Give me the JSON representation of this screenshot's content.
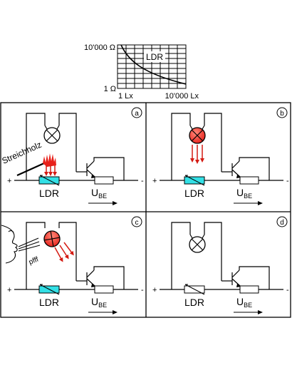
{
  "graph": {
    "y_top_label": "10'000 Ω",
    "y_bottom_label": "1 Ω",
    "x_left_label": "1 Lx",
    "x_right_label": "10'000 Lx",
    "curve_label": "LDR"
  },
  "panels": [
    {
      "id": "a",
      "corner_label": "a",
      "lamp_on": false,
      "ldr_label": "LDR",
      "vbe_main": "U",
      "vbe_sub": "BE",
      "plus": "+",
      "minus": "-",
      "light_source": "match",
      "match_label": "Streichholz"
    },
    {
      "id": "b",
      "corner_label": "b",
      "lamp_on": true,
      "ldr_label": "LDR",
      "vbe_main": "U",
      "vbe_sub": "BE",
      "plus": "+",
      "minus": "-",
      "light_source": "lamp"
    },
    {
      "id": "c",
      "corner_label": "c",
      "lamp_on": true,
      "ldr_label": "LDR",
      "vbe_main": "U",
      "vbe_sub": "BE",
      "plus": "+",
      "minus": "-",
      "light_source": "blow",
      "blow_label": "pfff"
    },
    {
      "id": "d",
      "corner_label": "d",
      "lamp_on": false,
      "ldr_label": "LDR",
      "vbe_main": "U",
      "vbe_sub": "BE",
      "plus": "+",
      "minus": "-",
      "light_source": "none"
    }
  ],
  "colors": {
    "ldr_fill": "#33e0e6",
    "lamp_on": "#e8201a",
    "arrow": "#d41a12",
    "line": "#000000"
  }
}
